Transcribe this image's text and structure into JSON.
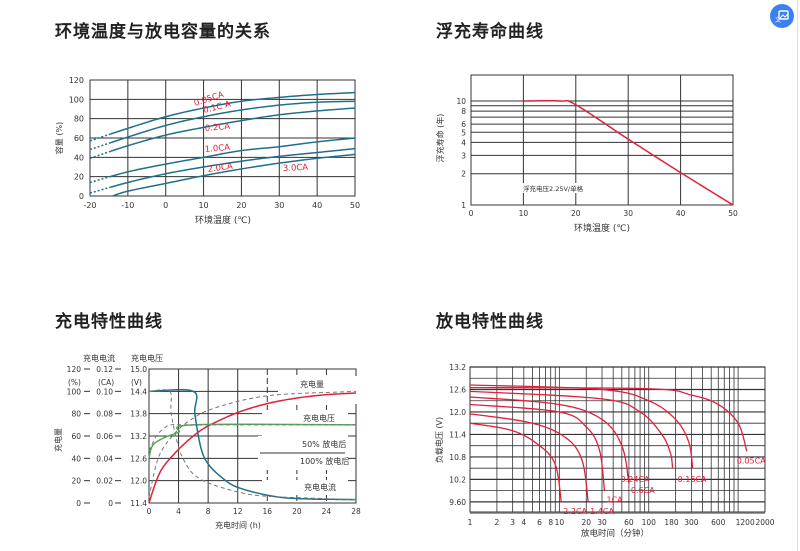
{
  "sections": [
    {
      "title": "环境温度与放电容量的关系"
    },
    {
      "title": "浮充寿命曲线"
    },
    {
      "title": "充电特性曲线"
    },
    {
      "title": "放电特性曲线"
    }
  ],
  "floating_button": {
    "icon": "image-translate-icon"
  },
  "colors": {
    "teal": "#1e6f8a",
    "red": "#e0203c",
    "green": "#4caf50",
    "dash": "#777777",
    "grid": "#333333"
  },
  "chart_data": [
    {
      "type": "line",
      "xlabel": "环境温度 (℃)",
      "ylabel": "容量 (%)",
      "xlim": [
        -20,
        50
      ],
      "ylim": [
        0,
        120
      ],
      "xticks": [
        "-20",
        "-10",
        "0",
        "10",
        "20",
        "30",
        "40",
        "50"
      ],
      "yticks": [
        "0",
        "20",
        "40",
        "60",
        "80",
        "100",
        "120"
      ],
      "grid": true,
      "series": [
        {
          "name": "0.05CA",
          "x": [
            -20,
            -10,
            0,
            10,
            20,
            30,
            40,
            50
          ],
          "y": [
            57,
            70,
            82,
            91,
            98,
            102,
            105,
            107
          ]
        },
        {
          "name": "0.1C A",
          "x": [
            -20,
            -10,
            0,
            10,
            20,
            30,
            40,
            50
          ],
          "y": [
            48,
            61,
            73,
            82,
            89,
            94,
            97,
            98
          ]
        },
        {
          "name": "0.2CA",
          "x": [
            -20,
            -10,
            0,
            10,
            20,
            30,
            40,
            50
          ],
          "y": [
            39,
            52,
            63,
            71,
            78,
            84,
            88,
            91
          ]
        },
        {
          "name": "1.0CA",
          "x": [
            -20,
            -10,
            0,
            10,
            20,
            30,
            40,
            50
          ],
          "y": [
            14,
            25,
            33,
            40,
            47,
            51,
            56,
            60
          ]
        },
        {
          "name": "2.0CA",
          "x": [
            -20,
            -10,
            0,
            10,
            20,
            30,
            40,
            50
          ],
          "y": [
            3,
            14,
            23,
            30,
            36,
            41,
            45,
            49
          ]
        },
        {
          "name": "3.0CA",
          "x": [
            -14,
            -10,
            0,
            10,
            20,
            30,
            40,
            50
          ],
          "y": [
            0,
            5,
            13,
            21,
            28,
            34,
            39,
            43
          ]
        }
      ]
    },
    {
      "type": "line",
      "xlabel": "环境温度 (℃)",
      "ylabel": "浮充寿命 (年)",
      "xlim": [
        0,
        50
      ],
      "ylim": [
        1,
        10
      ],
      "yscale": "log",
      "xticks": [
        "0",
        "10",
        "20",
        "30",
        "40",
        "50"
      ],
      "yticks": [
        "1",
        "2",
        "3",
        "4",
        "5",
        "6",
        "8",
        "10"
      ],
      "annotation": "浮充电压2.25V/单格",
      "grid": true,
      "series": [
        {
          "x": [
            10,
            17,
            20,
            30,
            40,
            50
          ],
          "y": [
            10,
            10,
            9.2,
            4.3,
            2.05,
            1
          ]
        }
      ]
    },
    {
      "type": "line",
      "xlabel": "充电时间 (h)",
      "ylabel": "充电量",
      "xlim": [
        0,
        28
      ],
      "xticks": [
        "0",
        "4",
        "8",
        "12",
        "16",
        "20",
        "24",
        "28"
      ],
      "axes": [
        {
          "header": "",
          "unit": "(%)",
          "lim": [
            0,
            120
          ],
          "ticks": [
            "0",
            "20",
            "40",
            "60",
            "80",
            "100",
            "120"
          ]
        },
        {
          "header": "充电电流",
          "unit": "(CA)",
          "lim": [
            0,
            0.12
          ],
          "ticks": [
            "0",
            "0.02",
            "0.04",
            "0.06",
            "0.08",
            "0.10",
            "0.12"
          ]
        },
        {
          "header": "充电电压",
          "unit": "(V)",
          "lim": [
            11.4,
            15.0
          ],
          "ticks": [
            "11.4",
            "12.0",
            "12.6",
            "13.2",
            "13.8",
            "14.4",
            "15.0"
          ]
        }
      ],
      "labels": {
        "amount": "充电量",
        "voltage": "充电电压",
        "after50": "50% 放电后",
        "after100": "100% 放电后",
        "current": "充电电流"
      },
      "grid": true,
      "series": [
        {
          "name": "充电量",
          "axis": 0,
          "style": "100%",
          "x": [
            0,
            1,
            2,
            4,
            6,
            8,
            12,
            16,
            20,
            24,
            28
          ],
          "y": [
            0,
            20,
            33,
            48,
            60,
            69,
            81,
            89,
            94,
            97,
            98.5
          ]
        },
        {
          "name": "充电电压",
          "axis": 2,
          "style": "100%",
          "x": [
            0,
            0.5,
            2,
            4,
            6,
            28
          ],
          "y": [
            12.6,
            12.95,
            13.15,
            13.3,
            13.5,
            13.5
          ]
        },
        {
          "name": "充电电流",
          "axis": 1,
          "style": "100%",
          "x": [
            0,
            6,
            6.2,
            7,
            8,
            10,
            12,
            16,
            20,
            28
          ],
          "y": [
            0.1,
            0.1,
            0.08,
            0.05,
            0.035,
            0.022,
            0.014,
            0.007,
            0.004,
            0.003
          ]
        },
        {
          "name": "充电量",
          "axis": 0,
          "style": "50%",
          "x": [
            0,
            1,
            2,
            4,
            6,
            8,
            12,
            16,
            20,
            24,
            28
          ],
          "y": [
            5,
            35,
            50,
            66,
            76,
            83,
            91,
            96,
            98,
            99,
            100
          ]
        },
        {
          "name": "充电电压",
          "axis": 2,
          "style": "50%",
          "x": [
            0,
            1,
            2,
            3,
            6,
            28
          ],
          "y": [
            12.8,
            13.2,
            13.4,
            13.5,
            13.5,
            13.5
          ]
        },
        {
          "name": "充电电流",
          "axis": 1,
          "style": "50%",
          "x": [
            0,
            2.8,
            3,
            4,
            5,
            6,
            8,
            12,
            16,
            28
          ],
          "y": [
            0.1,
            0.1,
            0.08,
            0.05,
            0.035,
            0.026,
            0.018,
            0.01,
            0.006,
            0.003
          ]
        }
      ]
    },
    {
      "type": "line",
      "xlabel": "放电时间（分钟）",
      "ylabel": "负载电压 (V)",
      "xlim": [
        1,
        2000
      ],
      "xscale": "log",
      "ylim": [
        9.33,
        13.2
      ],
      "xticks": [
        "1",
        "2",
        "3",
        "4",
        "6",
        "8",
        "10",
        "20",
        "30",
        "60",
        "100",
        "180",
        "300",
        "600",
        "1200",
        "2000"
      ],
      "yticks": [
        "9.60",
        "10.2",
        "10.8",
        "11.4",
        "12.0",
        "12.6",
        "13.2"
      ],
      "grid": true,
      "series": [
        {
          "name": "0.05CA",
          "x": [
            1,
            100,
            300,
            600,
            1000,
            1250
          ],
          "y": [
            12.65,
            12.62,
            12.45,
            12.2,
            11.7,
            10.95
          ]
        },
        {
          "name": "0.16CA",
          "x": [
            1,
            30,
            100,
            200,
            280,
            310
          ],
          "y": [
            12.72,
            12.6,
            12.3,
            11.8,
            11.2,
            10.5
          ]
        },
        {
          "name": "0.24CA",
          "x": [
            1,
            30,
            80,
            140,
            175,
            185
          ],
          "y": [
            12.55,
            12.35,
            12.0,
            11.4,
            10.9,
            10.5
          ]
        },
        {
          "name": "0.6CA",
          "x": [
            1,
            10,
            30,
            50,
            60
          ],
          "y": [
            12.4,
            12.2,
            11.8,
            11.1,
            10.1
          ]
        },
        {
          "name": "1CA",
          "x": [
            1,
            10,
            20,
            28,
            32
          ],
          "y": [
            12.2,
            12.0,
            11.6,
            11.0,
            9.9
          ]
        },
        {
          "name": "1.4CA",
          "x": [
            1,
            5,
            12,
            18,
            21
          ],
          "y": [
            11.95,
            11.7,
            11.3,
            10.7,
            9.6
          ]
        },
        {
          "name": "2.2CA",
          "x": [
            1,
            3,
            6,
            9,
            10.5
          ],
          "y": [
            11.7,
            11.5,
            11.1,
            10.6,
            9.6
          ]
        }
      ]
    }
  ]
}
